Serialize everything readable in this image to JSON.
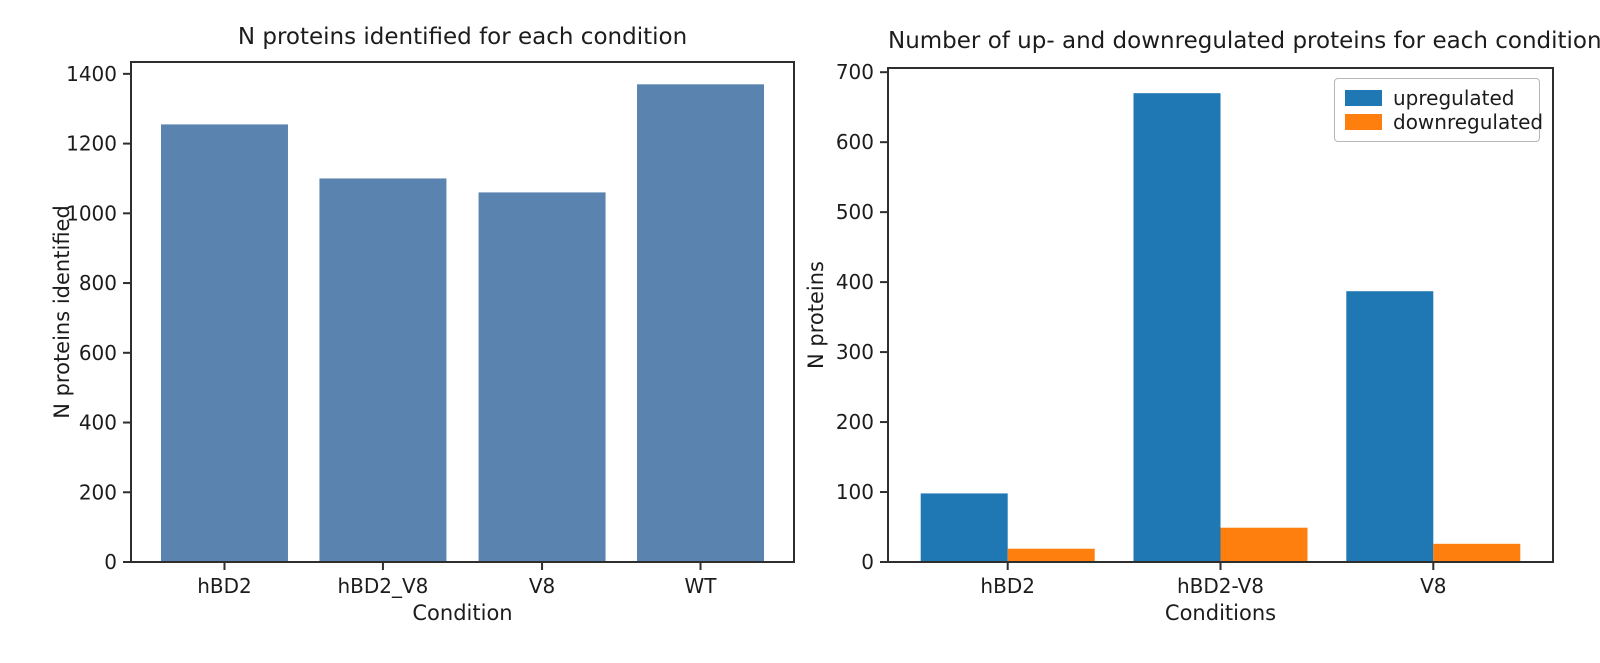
{
  "figure": {
    "background": "#ffffff",
    "spine_color": "#2e2e2e",
    "text_color": "#1c1c1c"
  },
  "chart_data": [
    {
      "type": "bar",
      "title": "N proteins identified for each condition",
      "xlabel": "Condition",
      "ylabel": "N proteins identified",
      "categories": [
        "hBD2",
        "hBD2_V8",
        "V8",
        "WT"
      ],
      "values": [
        1255,
        1100,
        1060,
        1370
      ],
      "ylim": [
        0,
        1400
      ],
      "ytick_step": 200,
      "bar_color": "#5b83b0",
      "grid": false,
      "legend": null
    },
    {
      "type": "bar",
      "title": "Number of up- and downregulated proteins for each condition",
      "xlabel": "Conditions",
      "ylabel": "N proteins",
      "categories": [
        "hBD2",
        "hBD2-V8",
        "V8"
      ],
      "series": [
        {
          "name": "upregulated",
          "color": "#1f77b4",
          "values": [
            98,
            670,
            387
          ]
        },
        {
          "name": "downregulated",
          "color": "#ff7f0e",
          "values": [
            19,
            49,
            26
          ]
        }
      ],
      "ylim": [
        0,
        700
      ],
      "ytick_step": 100,
      "grid": false,
      "legend": {
        "position": "upper right",
        "entries": [
          "upregulated",
          "downregulated"
        ]
      }
    }
  ]
}
